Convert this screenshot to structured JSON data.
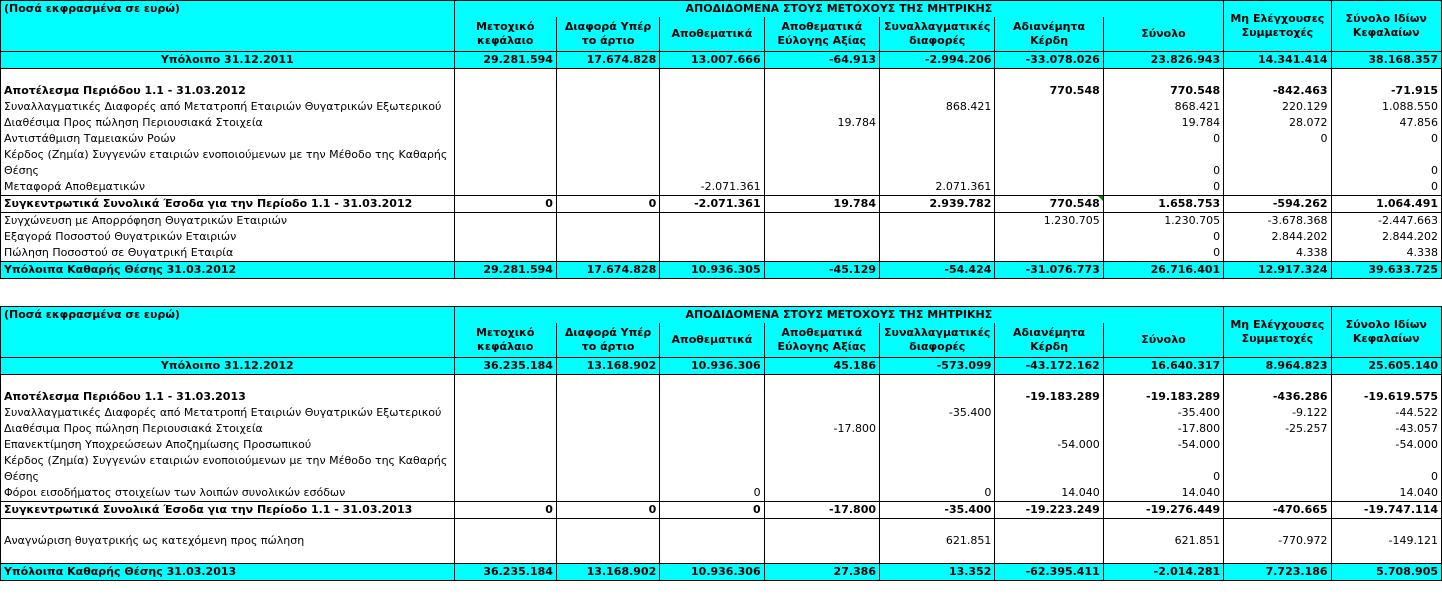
{
  "t1": {
    "unit": "(Ποσά εκφρασμένα σε ευρώ)",
    "group": "ΑΠΟΔΙΔΟΜΕΝΑ ΣΤΟΥΣ ΜΕΤΟΧΟΥΣ ΤΗΣ ΜΗΤΡΙΚΗΣ",
    "cols": [
      "Μετοχικό κεφάλαιο",
      "Διαφορά Υπέρ το άρτιο",
      "Αποθεματικά",
      "Αποθεματικά Εύλογης Αξίας",
      "Συναλλαγματικές διαφορές",
      "Αδιανέμητα Κέρδη",
      "Σύνολο",
      "Μη Ελέγχουσες Συμμετοχές",
      "Σύνολο Ιδίων Κεφαλαίων"
    ],
    "opening_label": "Υπόλοιπο 31.12.2011",
    "opening": [
      "29.281.594",
      "17.674.828",
      "13.007.666",
      "-64.913",
      "-2.994.206",
      "-33.078.026",
      "23.826.943",
      "14.341.414",
      "38.168.357"
    ],
    "rows": [
      {
        "label": "Αποτέλεσμα Περιόδου 1.1 - 31.03.2012",
        "bold": true,
        "v": [
          "",
          "",
          "",
          "",
          "",
          "770.548",
          "770.548",
          "-842.463",
          "-71.915"
        ]
      },
      {
        "label": "Συναλλαγματικές Διαφορές από Μετατροπή Εταιριών Θυγατρικών Εξωτερικού",
        "v": [
          "",
          "",
          "",
          "",
          "868.421",
          "",
          "868.421",
          "220.129",
          "1.088.550"
        ]
      },
      {
        "label": "Διαθέσιμα Προς πώληση Περιουσιακά Στοιχεία",
        "v": [
          "",
          "",
          "",
          "19.784",
          "",
          "",
          "19.784",
          "28.072",
          "47.856"
        ]
      },
      {
        "label": "Αντιστάθμιση Ταμειακών Ροών",
        "v": [
          "",
          "",
          "",
          "",
          "",
          "",
          "0",
          "0",
          "0"
        ]
      },
      {
        "label": "Κέρδος (Ζημία) Συγγενών εταιριών ενοποιούμενων με την Μέθοδο της Καθαρής",
        "v": [
          "",
          "",
          "",
          "",
          "",
          "",
          "",
          "",
          ""
        ]
      },
      {
        "label": "Θέσης",
        "v": [
          "",
          "",
          "",
          "",
          "",
          "",
          "0",
          "",
          "0"
        ]
      },
      {
        "label": "Μεταφορά Αποθεματικών",
        "v": [
          "",
          "",
          "-2.071.361",
          "",
          "2.071.361",
          "",
          "0",
          "",
          "0"
        ]
      },
      {
        "label": "Συγκεντρωτικά Συνολικά Έσοδα για την Περίοδο 1.1 - 31.03.2012",
        "bold": true,
        "total": true,
        "v": [
          "0",
          "0",
          "-2.071.361",
          "19.784",
          "2.939.782",
          "770.548",
          "1.658.753",
          "-594.262",
          "1.064.491"
        ]
      },
      {
        "label": "Συγχώνευση με Απορρόφηση Θυγατρικών Εταιριών",
        "v": [
          "",
          "",
          "",
          "",
          "",
          "1.230.705",
          "1.230.705",
          "-3.678.368",
          "-2.447.663"
        ]
      },
      {
        "label": "Εξαγορά Ποσοστού Θυγατρικών Εταιριών",
        "v": [
          "",
          "",
          "",
          "",
          "",
          "",
          "0",
          "2.844.202",
          "2.844.202"
        ]
      },
      {
        "label": "Πώληση Ποσοστού σε Θυγατρική Εταιρία",
        "v": [
          "",
          "",
          "",
          "",
          "",
          "",
          "0",
          "4.338",
          "4.338"
        ]
      }
    ],
    "closing_label": "Υπόλοιπα Καθαρής Θέσης 31.03.2012",
    "closing": [
      "29.281.594",
      "17.674.828",
      "10.936.305",
      "-45.129",
      "-54.424",
      "-31.076.773",
      "26.716.401",
      "12.917.324",
      "39.633.725"
    ]
  },
  "t2": {
    "unit": "(Ποσά εκφρασμένα σε ευρώ)",
    "group": "ΑΠΟΔΙΔΟΜΕΝΑ ΣΤΟΥΣ ΜΕΤΟΧΟΥΣ ΤΗΣ ΜΗΤΡΙΚΗΣ",
    "cols": [
      "Μετοχικό κεφάλαιο",
      "Διαφορά Υπέρ το άρτιο",
      "Αποθεματικά",
      "Αποθεματικά Εύλογης Αξίας",
      "Συναλλαγματικές διαφορές",
      "Αδιανέμητα Κέρδη",
      "Σύνολο",
      "Μη Ελέγχουσες Συμμετοχές",
      "Σύνολο Ιδίων Κεφαλαίων"
    ],
    "opening_label": "Υπόλοιπο 31.12.2012",
    "opening": [
      "36.235.184",
      "13.168.902",
      "10.936.306",
      "45.186",
      "-573.099",
      "-43.172.162",
      "16.640.317",
      "8.964.823",
      "25.605.140"
    ],
    "rows": [
      {
        "label": "Αποτέλεσμα Περιόδου 1.1 - 31.03.2013",
        "bold": true,
        "v": [
          "",
          "",
          "",
          "",
          "",
          "-19.183.289",
          "-19.183.289",
          "-436.286",
          "-19.619.575"
        ]
      },
      {
        "label": "Συναλλαγματικές Διαφορές από Μετατροπή Εταιριών Θυγατρικών Εξωτερικού",
        "v": [
          "",
          "",
          "",
          "",
          "-35.400",
          "",
          "-35.400",
          "-9.122",
          "-44.522"
        ]
      },
      {
        "label": "Διαθέσιμα Προς πώληση Περιουσιακά Στοιχεία",
        "v": [
          "",
          "",
          "",
          "-17.800",
          "",
          "",
          "-17.800",
          "-25.257",
          "-43.057"
        ]
      },
      {
        "label": "Επανεκτίμηση Υποχρεώσεων Αποζημίωσης Προσωπικού",
        "v": [
          "",
          "",
          "",
          "",
          "",
          "-54.000",
          "-54.000",
          "",
          "-54.000"
        ]
      },
      {
        "label": "Κέρδος (Ζημία) Συγγενών εταιριών ενοποιούμενων με την Μέθοδο της Καθαρής",
        "v": [
          "",
          "",
          "",
          "",
          "",
          "",
          "",
          "",
          ""
        ]
      },
      {
        "label": "Θέσης",
        "v": [
          "",
          "",
          "",
          "",
          "",
          "",
          "0",
          "",
          "0"
        ]
      },
      {
        "label": "Φόροι εισοδήματος στοιχείων των λοιπών συνολικών εσόδων",
        "v": [
          "",
          "",
          "0",
          "",
          "0",
          "14.040",
          "14.040",
          "",
          "14.040"
        ]
      },
      {
        "label": "Συγκεντρωτικά Συνολικά Έσοδα για την Περίοδο 1.1 - 31.03.2013",
        "bold": true,
        "total": true,
        "v": [
          "0",
          "0",
          "0",
          "-17.800",
          "-35.400",
          "-19.223.249",
          "-19.276.449",
          "-470.665",
          "-19.747.114"
        ]
      },
      {
        "label": "",
        "spacer": true,
        "v": [
          "",
          "",
          "",
          "",
          "",
          "",
          "",
          "",
          ""
        ]
      },
      {
        "label": "Αναγνώριση θυγατρικής ως κατεχόμενη προς πώληση",
        "v": [
          "",
          "",
          "",
          "",
          "621.851",
          "",
          "621.851",
          "-770.972",
          "-149.121"
        ]
      },
      {
        "label": "",
        "spacer": true,
        "v": [
          "",
          "",
          "",
          "",
          "",
          "",
          "",
          "",
          ""
        ]
      }
    ],
    "closing_label": "Υπόλοιπα Καθαρής Θέσης 31.03.2013",
    "closing": [
      "36.235.184",
      "13.168.902",
      "10.936.306",
      "27.386",
      "13.352",
      "-62.395.411",
      "-2.014.281",
      "7.723.186",
      "5.708.905"
    ]
  }
}
